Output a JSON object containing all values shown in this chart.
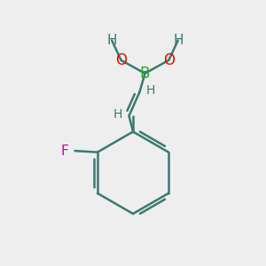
{
  "bg_color": "#eeeeee",
  "bond_color": "#3a7a72",
  "bond_width": 1.8,
  "B_color": "#22aa22",
  "O_color": "#dd1100",
  "F_color": "#cc00aa",
  "H_color": "#3a7a72",
  "figsize": [
    3.0,
    3.0
  ],
  "dpi": 100,
  "xlim": [
    0,
    10
  ],
  "ylim": [
    0,
    10
  ]
}
